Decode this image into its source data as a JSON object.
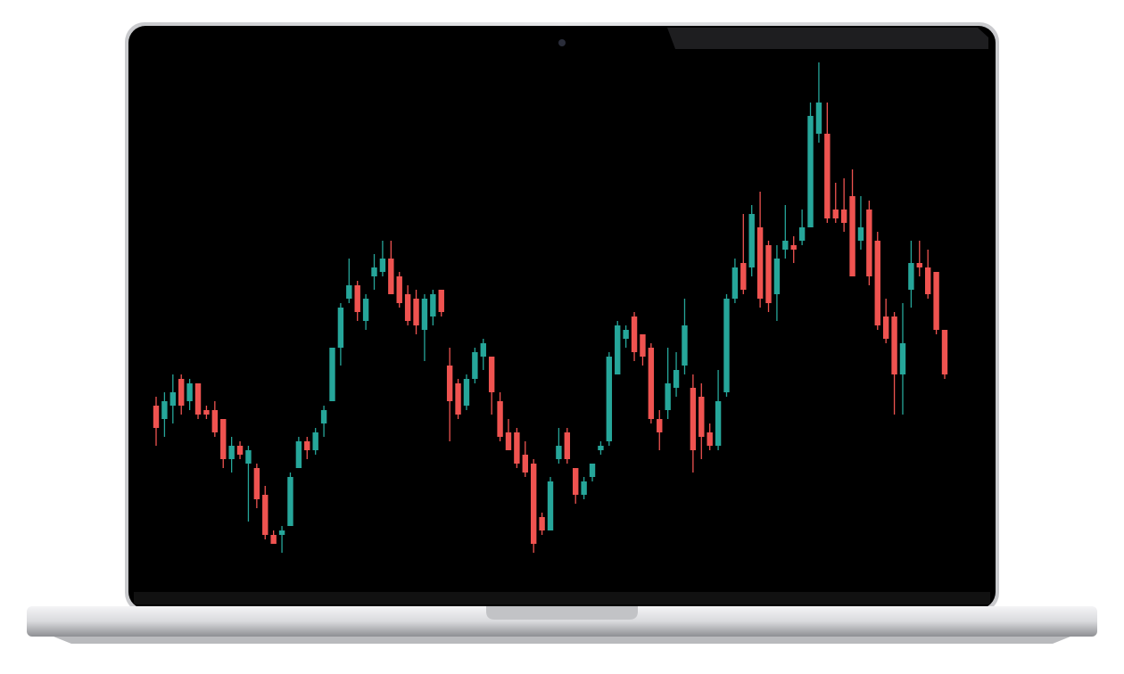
{
  "chart_data": {
    "type": "candlestick",
    "open": [
      37,
      34,
      37,
      43,
      38,
      42,
      36,
      36,
      34,
      25,
      28,
      24,
      23,
      17,
      8,
      8,
      10,
      23,
      29,
      27,
      33,
      38,
      50,
      61,
      64,
      56,
      66,
      67,
      70,
      66,
      62,
      61,
      54,
      57,
      63,
      46,
      42,
      37,
      43,
      48,
      48,
      38,
      31,
      31,
      26,
      24,
      12,
      9,
      25,
      31,
      23,
      17,
      21,
      27,
      29,
      44,
      52,
      57,
      53,
      50,
      34,
      36,
      41,
      46,
      41,
      39,
      31,
      28,
      40,
      61,
      69,
      68,
      77,
      73,
      62,
      72,
      73,
      74,
      77,
      98,
      98,
      81,
      81,
      84,
      74,
      81,
      74,
      57,
      57,
      44,
      63,
      69,
      68,
      67,
      54
    ],
    "high": [
      39,
      40,
      44,
      44,
      43,
      42,
      37,
      38,
      34,
      30,
      29,
      28,
      24,
      19,
      9,
      10,
      22,
      30,
      30,
      32,
      37,
      50,
      60,
      70,
      65,
      62,
      71,
      74,
      74,
      67,
      64,
      63,
      62,
      63,
      63,
      50,
      43,
      44,
      50,
      52,
      48,
      40,
      34,
      32,
      29,
      25,
      13,
      21,
      32,
      32,
      23,
      21,
      24,
      29,
      49,
      56,
      55,
      58,
      53,
      51,
      36,
      50,
      49,
      61,
      44,
      42,
      33,
      45,
      62,
      70,
      80,
      82,
      85,
      74,
      73,
      82,
      75,
      81,
      105,
      114,
      105,
      87,
      88,
      90,
      84,
      83,
      76,
      61,
      58,
      60,
      74,
      74,
      72,
      67,
      54
    ],
    "low": [
      28,
      30,
      33,
      35,
      36,
      34,
      34,
      30,
      23,
      22,
      25,
      11,
      14,
      7,
      6,
      4,
      10,
      23,
      25,
      26,
      30,
      38,
      46,
      60,
      56,
      54,
      63,
      66,
      62,
      59,
      55,
      53,
      47,
      55,
      57,
      29,
      34,
      36,
      42,
      45,
      35,
      29,
      27,
      23,
      21,
      4,
      8,
      9,
      24,
      24,
      15,
      16,
      20,
      26,
      28,
      44,
      50,
      47,
      46,
      33,
      27,
      34,
      39,
      44,
      22,
      25,
      27,
      27,
      39,
      60,
      62,
      66,
      59,
      58,
      56,
      70,
      69,
      73,
      77,
      96,
      78,
      78,
      76,
      66,
      72,
      64,
      54,
      51,
      35,
      35,
      59,
      66,
      61,
      53,
      43
    ],
    "close": [
      32,
      38,
      40,
      37,
      42,
      35,
      35,
      31,
      25,
      28,
      26,
      27,
      16,
      8,
      6,
      9,
      21,
      29,
      27,
      31,
      36,
      50,
      59,
      64,
      58,
      61,
      68,
      70,
      62,
      60,
      56,
      55,
      61,
      62,
      58,
      38,
      35,
      43,
      49,
      51,
      40,
      30,
      27,
      24,
      22,
      6,
      9,
      20,
      28,
      25,
      17,
      20,
      24,
      28,
      48,
      55,
      54,
      49,
      48,
      34,
      31,
      42,
      45,
      55,
      27,
      30,
      28,
      38,
      61,
      68,
      63,
      80,
      61,
      60,
      70,
      74,
      72,
      77,
      102,
      105,
      79,
      79,
      78,
      66,
      77,
      66,
      55,
      52,
      44,
      51,
      69,
      68,
      62,
      54,
      44
    ],
    "up_color": "#26a69a",
    "down_color": "#ef5350",
    "ylim": [
      0,
      120
    ]
  }
}
